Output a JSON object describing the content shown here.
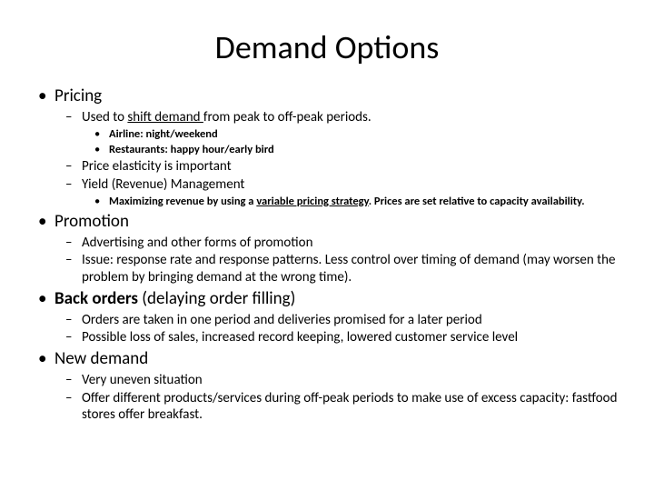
{
  "title": "Demand Options",
  "bullets": {
    "pricing": {
      "label": "Pricing",
      "shift_pre": "Used to ",
      "shift_u": "shift demand ",
      "shift_post": "from peak to off-peak periods.",
      "airline": "Airline: night/weekend",
      "restaurants": "Restaurants: happy hour/early bird",
      "elasticity": "Price elasticity is important",
      "yield": "Yield (Revenue) Management",
      "maxrev_pre": "Maximizing revenue by using a ",
      "maxrev_u": "variable pricing strategy",
      "maxrev_post": ". Prices are set relative to capacity availability."
    },
    "promotion": {
      "label": "Promotion",
      "advertising": "Advertising and other forms of promotion",
      "issue": "Issue: response rate and response patterns. Less control over timing of demand (may worsen the problem by bringing demand at the wrong time)."
    },
    "backorders": {
      "label_bold": "Back orders",
      "label_rest": " (delaying order filling)",
      "taken": "Orders are taken in one period and deliveries promised for a later period",
      "loss": "Possible loss of sales, increased record keeping, lowered customer service level"
    },
    "newdemand": {
      "label": "New demand",
      "uneven": "Very uneven situation",
      "offer": "Offer different products/services during off-peak periods to make use of excess capacity: fastfood stores offer breakfast."
    }
  }
}
